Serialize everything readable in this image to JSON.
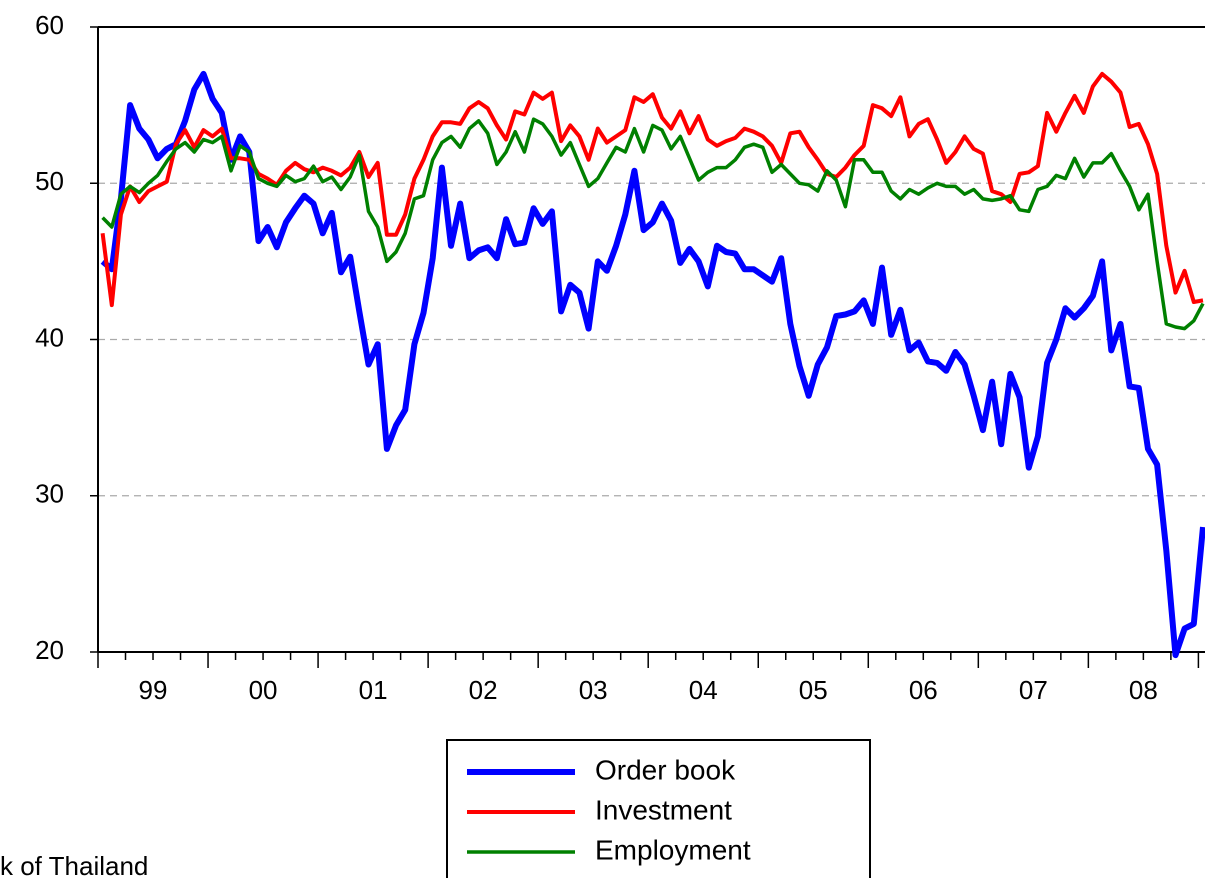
{
  "chart_data": {
    "type": "line",
    "categories": [
      null,
      null,
      null,
      null,
      null,
      null,
      null,
      null,
      null,
      null,
      null,
      null,
      null,
      null,
      null,
      null,
      null,
      null,
      null,
      null,
      null,
      null,
      null,
      null,
      null,
      null,
      null,
      null,
      null,
      null,
      null,
      null,
      null,
      null,
      null,
      null,
      null,
      null,
      null,
      null,
      null,
      null,
      null,
      null,
      null,
      null,
      null,
      null,
      null,
      null,
      null,
      null,
      null,
      null,
      null,
      null,
      null,
      null,
      null,
      null,
      null,
      null,
      null,
      null,
      null,
      null,
      null,
      null,
      null,
      null,
      null,
      null,
      null,
      null,
      null,
      null,
      null,
      null,
      null,
      null,
      null,
      null,
      null,
      null,
      null,
      null,
      null,
      null,
      null,
      null,
      null,
      null,
      null,
      null,
      null,
      null,
      null,
      null,
      null,
      null,
      null,
      null,
      null,
      null,
      null,
      null,
      null,
      null,
      null,
      null,
      null,
      null,
      null,
      null,
      null,
      null,
      null,
      null,
      null,
      null,
      null
    ],
    "year_labels": [
      "99",
      "00",
      "01",
      "02",
      "03",
      "04",
      "05",
      "06",
      "07",
      "08"
    ],
    "ylim": [
      20,
      60
    ],
    "yticks": [
      20,
      30,
      40,
      50,
      60
    ],
    "grid": true,
    "series": [
      {
        "name": "Order book",
        "color": "#0000ff",
        "values": [
          45,
          44.5,
          49,
          55,
          53.5,
          52.8,
          51.6,
          52.2,
          52.5,
          54,
          56,
          57,
          55.4,
          54.5,
          51.5,
          53,
          52,
          46.3,
          47.2,
          45.9,
          47.5,
          48.4,
          49.2,
          48.7,
          46.8,
          48.1,
          44.3,
          45.3,
          41.8,
          38.4,
          39.7,
          33,
          34.5,
          35.5,
          39.7,
          41.7,
          45.2,
          51,
          46,
          48.7,
          45.2,
          45.7,
          45.9,
          45.2,
          47.7,
          46.1,
          46.2,
          48.4,
          47.4,
          48.2,
          41.8,
          43.5,
          43,
          40.7,
          45,
          44.4,
          46,
          48,
          50.8,
          47,
          47.5,
          48.7,
          47.6,
          44.9,
          45.8,
          45,
          43.4,
          46,
          45.6,
          45.5,
          44.5,
          44.5,
          44.1,
          43.7,
          45.2,
          41,
          38.3,
          36.4,
          38.4,
          39.5,
          41.5,
          41.6,
          41.8,
          42.5,
          41,
          44.6,
          40.3,
          41.9,
          39.3,
          39.8,
          38.6,
          38.5,
          38,
          39.2,
          38.4,
          36.4,
          34.2,
          37.3,
          33.3,
          37.8,
          36.3,
          31.8,
          33.8,
          38.5,
          40,
          42,
          41.4,
          42,
          42.8,
          45,
          39.3,
          41,
          37,
          36.9,
          33,
          32,
          26.5,
          19.8,
          21.5,
          21.8,
          28
        ]
      },
      {
        "name": "Investment",
        "color": "#ff0000",
        "values": [
          46.8,
          42.2,
          48,
          49.8,
          48.8,
          49.5,
          49.8,
          50.1,
          52.5,
          53.4,
          52.3,
          53.4,
          53,
          53.5,
          51.6,
          51.6,
          51.5,
          50.6,
          50.3,
          49.9,
          50.8,
          51.3,
          50.9,
          50.7,
          51,
          50.8,
          50.5,
          51,
          52,
          50.4,
          51.3,
          46.7,
          46.7,
          48,
          50.3,
          51.5,
          53,
          53.9,
          53.9,
          53.8,
          54.8,
          55.2,
          54.8,
          53.7,
          52.8,
          54.6,
          54.4,
          55.8,
          55.4,
          55.8,
          52.7,
          53.7,
          53,
          51.5,
          53.5,
          52.6,
          53,
          53.4,
          55.5,
          55.2,
          55.7,
          54.2,
          53.5,
          54.6,
          53.2,
          54.3,
          52.8,
          52.4,
          52.7,
          52.9,
          53.5,
          53.3,
          53,
          52.4,
          51.3,
          53.2,
          53.3,
          52.3,
          51.5,
          50.6,
          50.4,
          51,
          51.8,
          52.4,
          55,
          54.8,
          54.3,
          55.5,
          53,
          53.8,
          54.1,
          52.8,
          51.3,
          52,
          53,
          52.2,
          51.9,
          49.5,
          49.3,
          48.8,
          50.6,
          50.7,
          51.1,
          54.5,
          53.3,
          54.5,
          55.6,
          54.5,
          56.2,
          57,
          56.5,
          55.8,
          53.6,
          53.8,
          52.5,
          50.6,
          46,
          43,
          44.4,
          42.4,
          42.5
        ]
      },
      {
        "name": "Employment",
        "color": "#008000",
        "values": [
          47.8,
          47.2,
          49.3,
          49.8,
          49.4,
          50,
          50.5,
          51.4,
          52.2,
          52.6,
          52,
          52.8,
          52.6,
          53,
          50.8,
          52.4,
          52,
          50.3,
          50,
          49.8,
          50.5,
          50.1,
          50.3,
          51.1,
          50.1,
          50.4,
          49.6,
          50.4,
          51.8,
          48.2,
          47.2,
          45,
          45.6,
          46.8,
          49,
          49.2,
          51.5,
          52.6,
          53,
          52.3,
          53.5,
          54,
          53.2,
          51.2,
          52,
          53.3,
          52,
          54.1,
          53.8,
          53,
          51.8,
          52.6,
          51.2,
          49.8,
          50.3,
          51.3,
          52.3,
          52,
          53.5,
          52,
          53.7,
          53.4,
          52.2,
          53,
          51.6,
          50.2,
          50.7,
          51,
          51,
          51.5,
          52.3,
          52.5,
          52.3,
          50.7,
          51.2,
          50.6,
          50,
          49.9,
          49.5,
          50.8,
          50.2,
          48.5,
          51.5,
          51.5,
          50.7,
          50.7,
          49.5,
          49,
          49.6,
          49.3,
          49.7,
          50,
          49.8,
          49.8,
          49.3,
          49.6,
          49,
          48.9,
          49,
          49.2,
          48.3,
          48.2,
          49.6,
          49.8,
          50.5,
          50.3,
          51.6,
          50.4,
          51.3,
          51.3,
          51.9,
          50.8,
          49.8,
          48.3,
          49.3,
          45,
          41,
          40.8,
          40.7,
          41.2,
          42.3
        ]
      }
    ],
    "note": "k of Thailand"
  }
}
